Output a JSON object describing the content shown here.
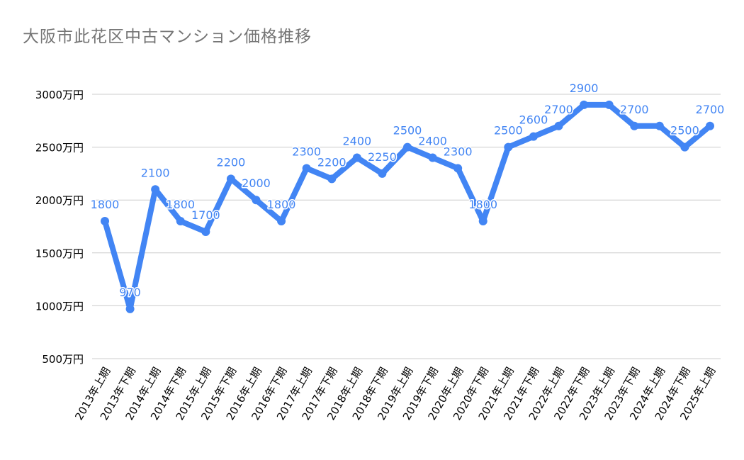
{
  "chart_data": {
    "type": "line",
    "title": "大阪市此花区中古マンション価格推移",
    "xlabel": "",
    "ylabel": "",
    "ylim": [
      500,
      3000
    ],
    "yticks": [
      500,
      1000,
      1500,
      2000,
      2500,
      3000
    ],
    "ytick_labels": [
      "500万円",
      "1000万円",
      "1500万円",
      "2000万円",
      "2500万円",
      "3000万円"
    ],
    "grid": true,
    "legend": null,
    "categories": [
      "2013年上期",
      "2013年下期",
      "2014年上期",
      "2014年下期",
      "2015年上期",
      "2015年下期",
      "2016年上期",
      "2016年下期",
      "2017年上期",
      "2017年下期",
      "2018年上期",
      "2018年下期",
      "2019年上期",
      "2019年下期",
      "2020年上期",
      "2020年下期",
      "2021年上期",
      "2021年下期",
      "2022年上期",
      "2022年下期",
      "2023年上期",
      "2023年下期",
      "2024年上期",
      "2024年下期",
      "2025年上期"
    ],
    "series": [
      {
        "name": "中古マンション価格",
        "color": "#4285f4",
        "values": [
          1800,
          970,
          2100,
          1800,
          1700,
          2200,
          2000,
          1800,
          2300,
          2200,
          2400,
          2250,
          2500,
          2400,
          2300,
          1800,
          2500,
          2600,
          2700,
          2900,
          2900,
          2700,
          2700,
          2500,
          2700
        ],
        "data_labels": [
          "1800",
          "970",
          "2100",
          "1800",
          "1700",
          "2200",
          "2000",
          "1800",
          "2300",
          "2200",
          "2400",
          "2250",
          "2500",
          "2400",
          "2300",
          "1800",
          "2500",
          "2600",
          "2700",
          "2900",
          "",
          "2700",
          "",
          "2500",
          "2700"
        ]
      }
    ]
  },
  "colors": {
    "line": "#4285f4",
    "grid": "#cccccc",
    "title": "#757575",
    "axis_text": "#000000"
  }
}
